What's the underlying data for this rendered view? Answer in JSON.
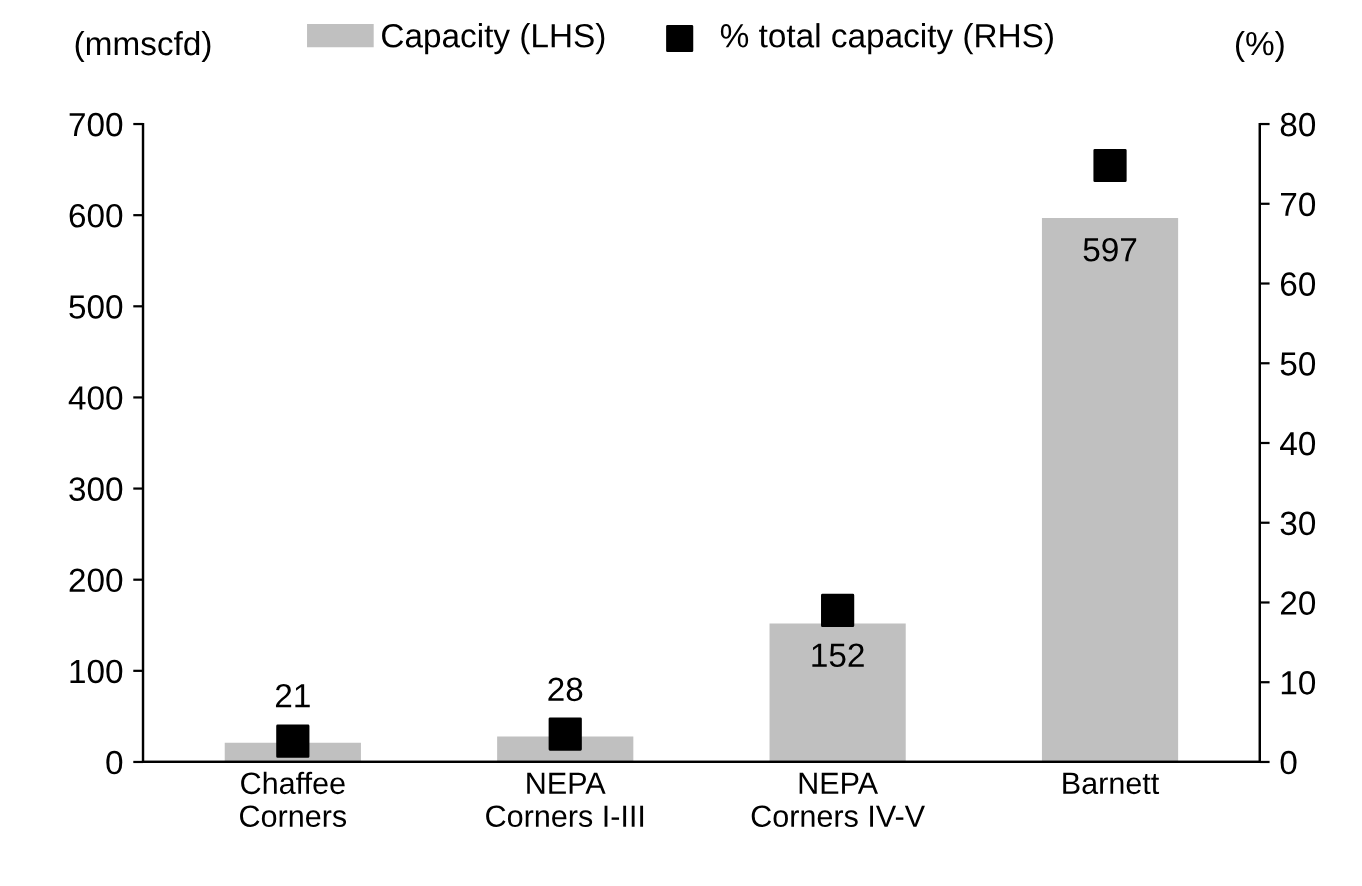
{
  "chart_data": {
    "type": "bar",
    "ylabel": "(mmscfd)",
    "y2label": "(%)",
    "categories": [
      "Chaffee\nCorners",
      "NEPA\nCorners I-III",
      "NEPA\nCorners IV-V",
      "Barnett"
    ],
    "series": [
      {
        "name": "Capacity (LHS)",
        "color": "#c0c0c0",
        "values": [
          21,
          28,
          152,
          597
        ],
        "value_labels": [
          "21",
          "28",
          "152",
          "597"
        ]
      },
      {
        "name": "% total capacity (RHS)",
        "type": "scatter",
        "axis": "y2",
        "color": "#000000",
        "marker": "square",
        "values": [
          2.6,
          3.5,
          19.0,
          74.8
        ]
      }
    ],
    "legend": "top",
    "grid": false,
    "ylim": [
      0,
      700
    ],
    "yticks": [
      0,
      100,
      200,
      300,
      400,
      500,
      600,
      700
    ],
    "y2lim": [
      0,
      80
    ],
    "y2ticks": [
      0,
      10,
      20,
      30,
      40,
      50,
      60,
      70,
      80
    ]
  }
}
